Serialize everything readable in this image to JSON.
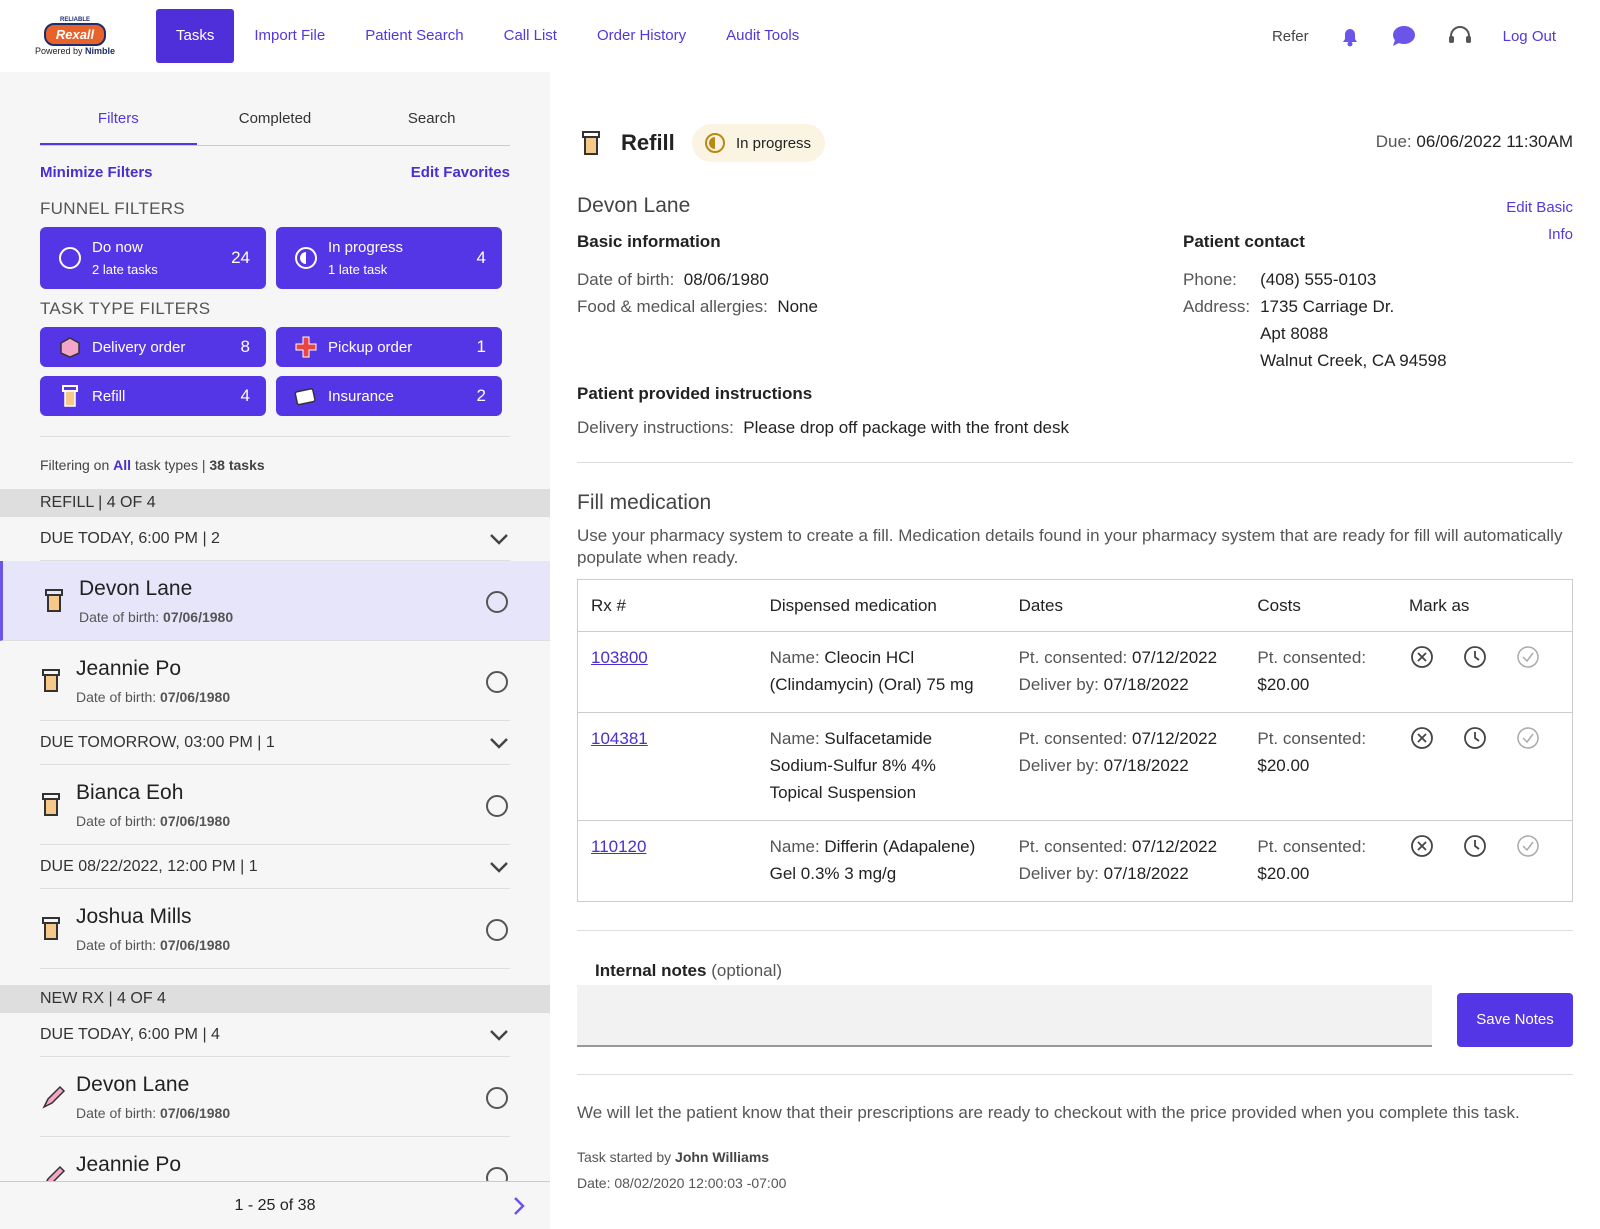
{
  "header": {
    "logo_top": "RELIABLE",
    "logo_brand": "Rexall",
    "logo_powered": "Powered by",
    "logo_nimble": "Nimble",
    "nav": [
      "Tasks",
      "Import File",
      "Patient Search",
      "Call List",
      "Order History",
      "Audit Tools"
    ],
    "refer": "Refer",
    "logout": "Log Out"
  },
  "sidebar": {
    "tabs": [
      "Filters",
      "Completed",
      "Search"
    ],
    "minimize": "Minimize Filters",
    "edit_favorites": "Edit Favorites",
    "funnel_heading": "FUNNEL FILTERS",
    "funnel": [
      {
        "label": "Do now",
        "sub": "2 late tasks",
        "count": 24
      },
      {
        "label": "In progress",
        "sub": "1 late task",
        "count": 4
      }
    ],
    "task_type_heading": "TASK TYPE FILTERS",
    "task_types": [
      {
        "label": "Delivery order",
        "count": 8
      },
      {
        "label": "Pickup order",
        "count": 1
      },
      {
        "label": "Refill",
        "count": 4
      },
      {
        "label": "Insurance",
        "count": 2
      }
    ],
    "filtering": [
      "Filtering on",
      "All",
      "task types |",
      "38 tasks"
    ],
    "groups": [
      {
        "title": "REFILL | 4 OF 4",
        "sections": [
          {
            "title": "DUE TODAY, 6:00 PM | 2",
            "items": [
              {
                "name": "Devon Lane",
                "dob_label": "Date of birth:",
                "dob": "07/06/1980"
              },
              {
                "name": "Jeannie Po",
                "dob_label": "Date of birth:",
                "dob": "07/06/1980"
              }
            ]
          },
          {
            "title": "DUE TOMORROW, 03:00 PM | 1",
            "items": [
              {
                "name": "Bianca Eoh",
                "dob_label": "Date of birth:",
                "dob": "07/06/1980"
              }
            ]
          },
          {
            "title": "DUE 08/22/2022, 12:00 PM | 1",
            "items": [
              {
                "name": "Joshua Mills",
                "dob_label": "Date of birth:",
                "dob": "07/06/1980"
              }
            ]
          }
        ]
      },
      {
        "title": "NEW RX | 4 OF 4",
        "sections": [
          {
            "title": "DUE TODAY, 6:00 PM | 4",
            "items": [
              {
                "name": "Devon Lane",
                "dob_label": "Date of birth:",
                "dob": "07/06/1980"
              },
              {
                "name": "Jeannie Po"
              }
            ]
          }
        ]
      }
    ],
    "pagination": "1 - 25 of 38"
  },
  "task": {
    "type": "Refill",
    "status": "In progress",
    "due_label": "Due:",
    "due": "06/06/2022 11:30AM",
    "patient": "Devon Lane",
    "edit_basic": "Edit Basic Info",
    "basic_heading": "Basic information",
    "dob_label": "Date of birth:",
    "dob": "08/06/1980",
    "allergies_label": "Food & medical allergies:",
    "allergies": "None",
    "contact_heading": "Patient contact",
    "phone_label": "Phone:",
    "phone": "(408) 555-0103",
    "address_label": "Address:",
    "address": [
      "1735 Carriage Dr.",
      "Apt 8088",
      "Walnut Creek, CA 94598"
    ],
    "instructions_heading": "Patient provided instructions",
    "delivery_label": "Delivery instructions:",
    "delivery": "Please drop off package with the front desk",
    "fill_heading": "Fill medication",
    "fill_text": "Use your pharmacy system to create a fill. Medication details found in your pharmacy system that are ready for fill will automatically populate when ready.",
    "table": {
      "headers": [
        "Rx #",
        "Dispensed medication",
        "Dates",
        "Costs",
        "Mark as"
      ],
      "rows": [
        {
          "rx": "103800",
          "name_label": "Name:",
          "name": "Cleocin HCl (Clindamycin) (Oral) 75 mg",
          "consented_label": "Pt. consented:",
          "consented": "07/12/2022",
          "deliver_label": "Deliver by:",
          "deliver": "07/18/2022",
          "cost_label": "Pt. consented:",
          "cost": "$20.00"
        },
        {
          "rx": "104381",
          "name_label": "Name:",
          "name": "Sulfacetamide Sodium-Sulfur 8% 4% Topical Suspension",
          "consented_label": "Pt. consented:",
          "consented": "07/12/2022",
          "deliver_label": "Deliver by:",
          "deliver": "07/18/2022",
          "cost_label": "Pt. consented:",
          "cost": "$20.00"
        },
        {
          "rx": "110120",
          "name_label": "Name:",
          "name": "Differin (Adapalene) Gel 0.3% 3 mg/g",
          "consented_label": "Pt. consented:",
          "consented": "07/12/2022",
          "deliver_label": "Deliver by:",
          "deliver": "07/18/2022",
          "cost_label": "Pt. consented:",
          "cost": "$20.00"
        }
      ]
    },
    "notes_label": "Internal notes",
    "notes_optional": "(optional)",
    "save": "Save Notes",
    "notice": "We will let the patient know that their prescriptions are ready to checkout with the price provided when you complete this task.",
    "started_label": "Task started by",
    "started_by": "John Williams",
    "date_line": "Date: 08/02/2020 12:00:03 -07:00"
  }
}
